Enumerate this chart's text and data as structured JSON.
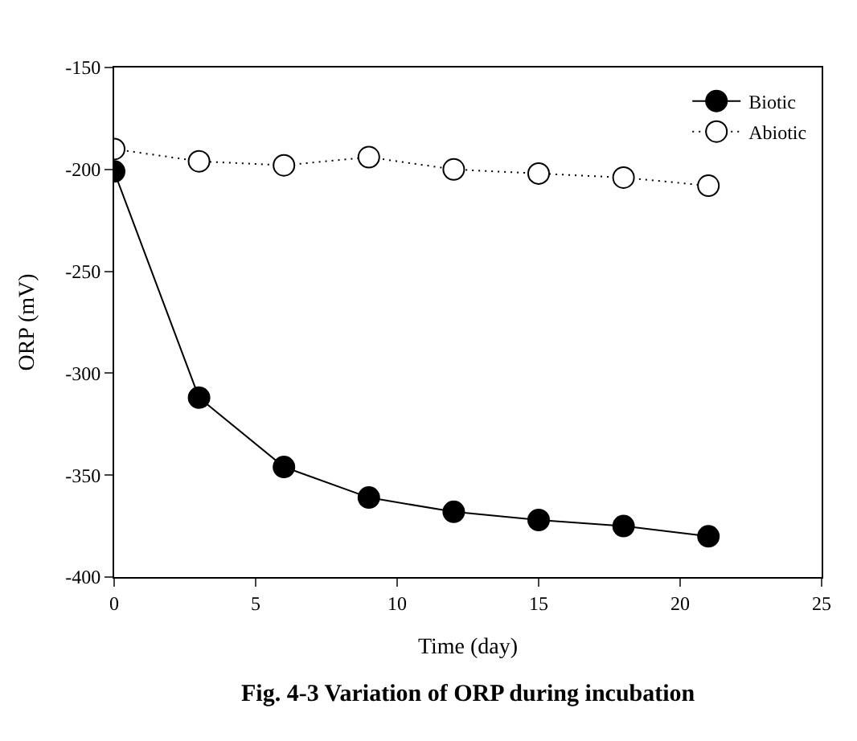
{
  "chart_data": {
    "type": "line",
    "xlabel": "Time (day)",
    "ylabel": "ORP (mV)",
    "x": [
      0,
      3,
      6,
      9,
      12,
      15,
      18,
      21
    ],
    "series": [
      {
        "name": "Biotic",
        "color": "#000000",
        "marker": "circle",
        "line_style": "solid",
        "values": [
          -201,
          -312,
          -346,
          -361,
          -368,
          -372,
          -375,
          -380
        ]
      },
      {
        "name": "Abiotic",
        "color": "#ffffff",
        "marker": "circle",
        "line_style": "dotted",
        "values": [
          -190,
          -196,
          -198,
          -194,
          -200,
          -202,
          -204,
          -208
        ]
      }
    ],
    "xlim": [
      0,
      25
    ],
    "xticks": [
      0,
      5,
      10,
      15,
      20,
      25
    ],
    "ylim": [
      -400,
      -150
    ],
    "yticks": [
      -400,
      -350,
      -300,
      -250,
      -200,
      -150
    ],
    "legend": "top right",
    "annotations": [
      "Fig. 4-3 Variation of ORP during incubation"
    ]
  }
}
